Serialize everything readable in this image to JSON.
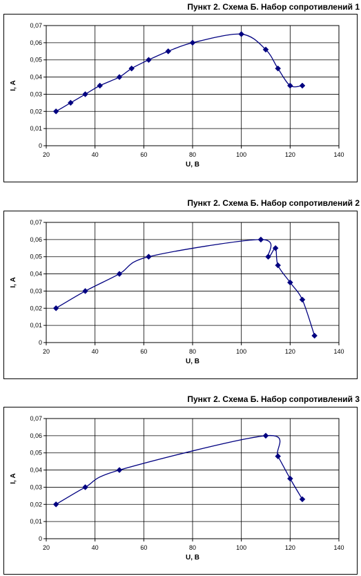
{
  "chart_data": [
    {
      "type": "line",
      "title": "Пункт 2. Схема Б. Набор сопротивлений 1",
      "xlabel": "U, В",
      "ylabel": "I, А",
      "xlim": [
        20,
        140
      ],
      "ylim": [
        0,
        0.07
      ],
      "xticks": [
        "20",
        "40",
        "60",
        "80",
        "100",
        "120",
        "140"
      ],
      "yticks": [
        "0",
        "0,01",
        "0,02",
        "0,03",
        "0,04",
        "0,05",
        "0,06",
        "0,07"
      ],
      "grid": true,
      "series": [
        {
          "x": [
            24,
            30,
            36,
            42,
            50,
            55,
            62,
            70,
            80,
            100,
            110,
            115,
            120,
            125
          ],
          "y": [
            0.02,
            0.025,
            0.03,
            0.035,
            0.04,
            0.045,
            0.05,
            0.055,
            0.06,
            0.065,
            0.056,
            0.045,
            0.035,
            0.035
          ]
        }
      ],
      "colors": {
        "line": "#000080",
        "marker": "#000080",
        "grid": "#000000"
      }
    },
    {
      "type": "line",
      "title": "Пункт 2. Схема Б. Набор сопротивлений 2",
      "xlabel": "U, В",
      "ylabel": "I, А",
      "xlim": [
        20,
        140
      ],
      "ylim": [
        0,
        0.07
      ],
      "xticks": [
        "20",
        "40",
        "60",
        "80",
        "100",
        "120",
        "140"
      ],
      "yticks": [
        "0",
        "0,01",
        "0,02",
        "0,03",
        "0,04",
        "0,05",
        "0,06",
        "0,07"
      ],
      "grid": true,
      "series": [
        {
          "x": [
            24,
            36,
            50,
            62,
            108,
            111,
            114,
            115,
            120,
            125,
            130
          ],
          "y": [
            0.02,
            0.03,
            0.04,
            0.05,
            0.06,
            0.05,
            0.055,
            0.045,
            0.035,
            0.025,
            0.004
          ]
        }
      ],
      "colors": {
        "line": "#000080",
        "marker": "#000080",
        "grid": "#000000"
      }
    },
    {
      "type": "line",
      "title": "Пункт 2. Схема Б. Набор сопротивлений 3",
      "xlabel": "U, В",
      "ylabel": "I, А",
      "xlim": [
        20,
        140
      ],
      "ylim": [
        0,
        0.07
      ],
      "xticks": [
        "20",
        "40",
        "60",
        "80",
        "100",
        "120",
        "140"
      ],
      "yticks": [
        "0",
        "0,01",
        "0,02",
        "0,03",
        "0,04",
        "0,05",
        "0,06",
        "0,07"
      ],
      "grid": true,
      "series": [
        {
          "x": [
            24,
            36,
            50,
            110,
            115,
            120,
            125
          ],
          "y": [
            0.02,
            0.03,
            0.04,
            0.06,
            0.048,
            0.035,
            0.023
          ]
        }
      ],
      "colors": {
        "line": "#000080",
        "marker": "#000080",
        "grid": "#000000"
      }
    }
  ]
}
